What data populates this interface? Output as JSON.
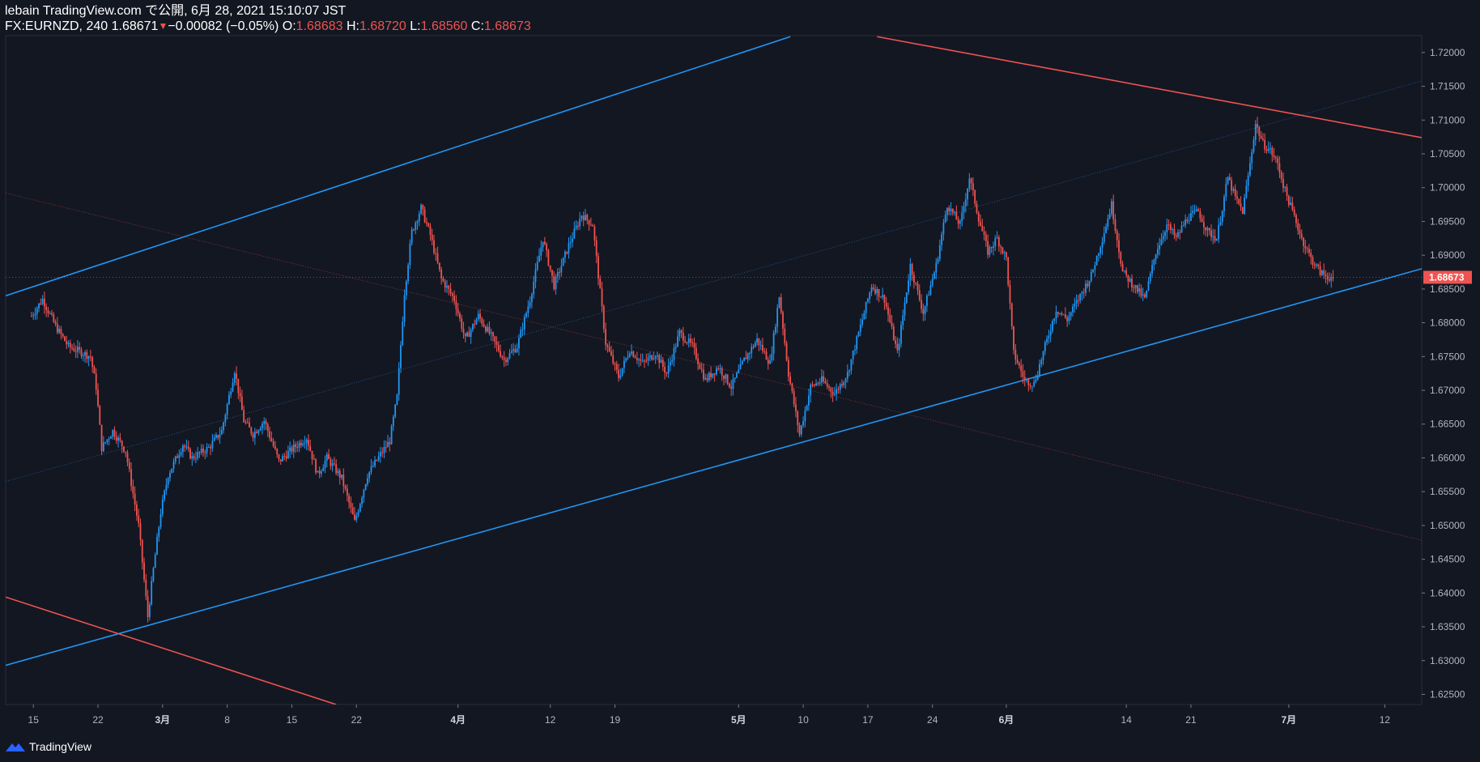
{
  "header": {
    "line1": "lebain TradingView.com で公開, 6月 28, 2021 15:10:07 JST",
    "symbol": "FX:EURNZD, 240",
    "last_price": "1.68671",
    "change": "−0.00082 (−0.05%)",
    "open_label": "O:",
    "open": "1.68683",
    "high_label": "H:",
    "high": "1.68720",
    "low_label": "L:",
    "low": "1.68560",
    "close_label": "C:",
    "close": "1.68673"
  },
  "footer": {
    "brand": "TradingView"
  },
  "colors": {
    "background": "#131722",
    "up": "#2196f3",
    "down": "#ef5350",
    "axis_text": "#b2b5be",
    "price_tag_bg": "#ef5350"
  },
  "chart_data": {
    "type": "candlestick",
    "symbol": "FX:EURNZD",
    "timeframe": "240",
    "ylim": [
      1.6235,
      1.7225
    ],
    "y_ticks": [
      "1.72000",
      "1.71500",
      "1.71000",
      "1.70500",
      "1.70000",
      "1.69500",
      "1.69000",
      "1.68500",
      "1.68000",
      "1.67500",
      "1.67000",
      "1.66500",
      "1.66000",
      "1.65500",
      "1.65000",
      "1.64500",
      "1.64000",
      "1.63500",
      "1.63000",
      "1.62500"
    ],
    "y_tick_values": [
      1.72,
      1.715,
      1.71,
      1.705,
      1.7,
      1.695,
      1.69,
      1.685,
      1.68,
      1.675,
      1.67,
      1.665,
      1.66,
      1.655,
      1.65,
      1.645,
      1.64,
      1.635,
      1.63,
      1.625
    ],
    "x_ticks": [
      {
        "label": "15",
        "x": 1
      },
      {
        "label": "22",
        "x": 36
      },
      {
        "label": "3月",
        "x": 71
      },
      {
        "label": "8",
        "x": 106
      },
      {
        "label": "15",
        "x": 141
      },
      {
        "label": "22",
        "x": 176
      },
      {
        "label": "4月",
        "x": 231
      },
      {
        "label": "12",
        "x": 281
      },
      {
        "label": "19",
        "x": 316
      },
      {
        "label": "5月",
        "x": 383
      },
      {
        "label": "10",
        "x": 418
      },
      {
        "label": "17",
        "x": 453
      },
      {
        "label": "24",
        "x": 488
      },
      {
        "label": "6月",
        "x": 528
      },
      {
        "label": "14",
        "x": 593
      },
      {
        "label": "21",
        "x": 628
      },
      {
        "label": "7月",
        "x": 681
      },
      {
        "label": "12",
        "x": 733
      }
    ],
    "x_range": [
      -14,
      753
    ],
    "current_price": "1.68673",
    "anchors": [
      [
        0,
        1.681
      ],
      [
        6,
        1.6835
      ],
      [
        13,
        1.6795
      ],
      [
        20,
        1.6765
      ],
      [
        32,
        1.675
      ],
      [
        35,
        1.6705
      ],
      [
        38,
        1.6615
      ],
      [
        44,
        1.664
      ],
      [
        51,
        1.661
      ],
      [
        58,
        1.65
      ],
      [
        63,
        1.6365
      ],
      [
        66,
        1.6435
      ],
      [
        70,
        1.652
      ],
      [
        74,
        1.6575
      ],
      [
        82,
        1.662
      ],
      [
        87,
        1.66
      ],
      [
        96,
        1.6615
      ],
      [
        103,
        1.664
      ],
      [
        110,
        1.673
      ],
      [
        115,
        1.6655
      ],
      [
        120,
        1.6635
      ],
      [
        126,
        1.6655
      ],
      [
        134,
        1.6595
      ],
      [
        142,
        1.6615
      ],
      [
        149,
        1.663
      ],
      [
        155,
        1.6575
      ],
      [
        160,
        1.66
      ],
      [
        168,
        1.657
      ],
      [
        175,
        1.6505
      ],
      [
        182,
        1.6575
      ],
      [
        189,
        1.6605
      ],
      [
        194,
        1.6625
      ],
      [
        198,
        1.669
      ],
      [
        202,
        1.6845
      ],
      [
        206,
        1.6935
      ],
      [
        211,
        1.697
      ],
      [
        216,
        1.693
      ],
      [
        222,
        1.6865
      ],
      [
        229,
        1.6835
      ],
      [
        235,
        1.6775
      ],
      [
        242,
        1.681
      ],
      [
        249,
        1.678
      ],
      [
        256,
        1.6745
      ],
      [
        263,
        1.6765
      ],
      [
        270,
        1.6835
      ],
      [
        277,
        1.6925
      ],
      [
        283,
        1.6855
      ],
      [
        291,
        1.6915
      ],
      [
        298,
        1.696
      ],
      [
        304,
        1.6945
      ],
      [
        311,
        1.677
      ],
      [
        318,
        1.672
      ],
      [
        324,
        1.676
      ],
      [
        331,
        1.674
      ],
      [
        338,
        1.6755
      ],
      [
        344,
        1.6725
      ],
      [
        351,
        1.6785
      ],
      [
        358,
        1.6765
      ],
      [
        365,
        1.6715
      ],
      [
        372,
        1.6735
      ],
      [
        379,
        1.6705
      ],
      [
        386,
        1.6745
      ],
      [
        393,
        1.6775
      ],
      [
        400,
        1.674
      ],
      [
        405,
        1.684
      ],
      [
        410,
        1.6725
      ],
      [
        416,
        1.6635
      ],
      [
        422,
        1.6705
      ],
      [
        428,
        1.6715
      ],
      [
        435,
        1.6695
      ],
      [
        442,
        1.6725
      ],
      [
        449,
        1.6795
      ],
      [
        455,
        1.6855
      ],
      [
        462,
        1.6835
      ],
      [
        469,
        1.6755
      ],
      [
        476,
        1.6885
      ],
      [
        483,
        1.6815
      ],
      [
        490,
        1.6885
      ],
      [
        496,
        1.6975
      ],
      [
        503,
        1.6945
      ],
      [
        508,
        1.7015
      ],
      [
        513,
        1.6955
      ],
      [
        518,
        1.6905
      ],
      [
        523,
        1.6925
      ],
      [
        528,
        1.6895
      ],
      [
        532,
        1.6755
      ],
      [
        538,
        1.6715
      ],
      [
        543,
        1.671
      ],
      [
        549,
        1.6765
      ],
      [
        555,
        1.682
      ],
      [
        561,
        1.6805
      ],
      [
        568,
        1.684
      ],
      [
        574,
        1.687
      ],
      [
        580,
        1.6925
      ],
      [
        585,
        1.6975
      ],
      [
        591,
        1.6875
      ],
      [
        597,
        1.6855
      ],
      [
        603,
        1.6835
      ],
      [
        609,
        1.6905
      ],
      [
        615,
        1.6945
      ],
      [
        620,
        1.6925
      ],
      [
        626,
        1.6955
      ],
      [
        632,
        1.6965
      ],
      [
        637,
        1.6935
      ],
      [
        642,
        1.6925
      ],
      [
        648,
        1.7015
      ],
      [
        652,
        1.6985
      ],
      [
        656,
        1.6965
      ],
      [
        660,
        1.7035
      ],
      [
        663,
        1.7095
      ],
      [
        667,
        1.7065
      ],
      [
        671,
        1.7055
      ],
      [
        675,
        1.7035
      ],
      [
        679,
        1.6995
      ],
      [
        683,
        1.6965
      ],
      [
        688,
        1.6925
      ],
      [
        693,
        1.6895
      ],
      [
        698,
        1.6875
      ],
      [
        702,
        1.6868
      ],
      [
        705,
        1.6867
      ]
    ],
    "trendlines": [
      {
        "color": "#2196f3",
        "width": 1.6,
        "style": "solid",
        "points": [
          [
            -14,
            1.684
          ],
          [
            411,
            1.72235
          ]
        ]
      },
      {
        "color": "#2196f3",
        "width": 1.6,
        "style": "solid",
        "points": [
          [
            -14,
            1.6293
          ],
          [
            753,
            1.688
          ]
        ]
      },
      {
        "color": "#2196f3",
        "width": 0.6,
        "style": "dotted",
        "points": [
          [
            -14,
            1.6565
          ],
          [
            753,
            1.7158
          ]
        ]
      },
      {
        "color": "#ef5350",
        "width": 1.6,
        "style": "solid",
        "points": [
          [
            -14,
            1.6394
          ],
          [
            165,
            1.6235
          ]
        ]
      },
      {
        "color": "#ef5350",
        "width": 1.6,
        "style": "solid",
        "points": [
          [
            458,
            1.72235
          ],
          [
            753,
            1.7074
          ]
        ]
      },
      {
        "color": "#ef5350",
        "width": 0.6,
        "style": "dotted",
        "points": [
          [
            -14,
            1.6992
          ],
          [
            753,
            1.6478
          ]
        ]
      }
    ]
  }
}
